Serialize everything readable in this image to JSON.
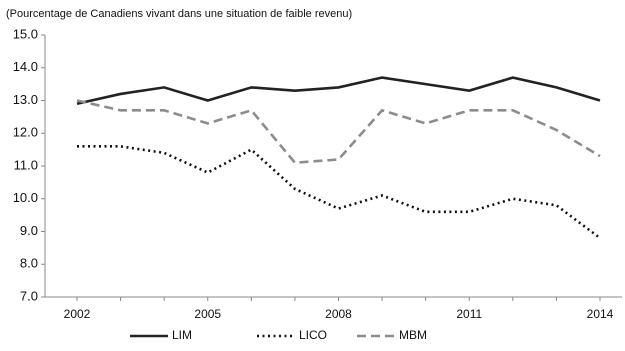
{
  "chart_data": {
    "type": "line",
    "title": "(Pourcentage de Canadiens vivant dans une situation de faible revenu)",
    "categories": [
      "2002",
      null,
      null,
      "2005",
      null,
      null,
      "2008",
      null,
      null,
      "2011",
      null,
      null,
      "2014"
    ],
    "series": [
      {
        "name": "LIM",
        "color": "#222222",
        "style": "solid",
        "values": [
          12.9,
          13.2,
          13.4,
          13.0,
          13.4,
          13.3,
          13.4,
          13.7,
          13.5,
          13.3,
          13.7,
          13.4,
          13.0
        ]
      },
      {
        "name": "LICO",
        "color": "#111111",
        "style": "dotted",
        "values": [
          11.6,
          11.6,
          11.4,
          10.8,
          11.5,
          10.3,
          9.7,
          10.1,
          9.6,
          9.6,
          10.0,
          9.8,
          8.8
        ]
      },
      {
        "name": "MBM",
        "color": "#8c8c8c",
        "style": "dashed",
        "values": [
          13.0,
          12.7,
          12.7,
          12.3,
          12.7,
          11.1,
          11.2,
          12.7,
          12.3,
          12.7,
          12.7,
          12.1,
          11.3
        ]
      }
    ],
    "ylim": [
      7,
      15
    ],
    "yticks": [
      {
        "value": 7,
        "label": "7.0"
      },
      {
        "value": 8,
        "label": "8.0"
      },
      {
        "value": 9,
        "label": "9.0"
      },
      {
        "value": 10,
        "label": "10.0"
      },
      {
        "value": 11,
        "label": "11.0"
      },
      {
        "value": 12,
        "label": "12.0"
      },
      {
        "value": 13,
        "label": "13.0"
      },
      {
        "value": 14,
        "label": "14.0"
      },
      {
        "value": 15,
        "label": "15.0"
      }
    ],
    "legend": "bottom"
  }
}
